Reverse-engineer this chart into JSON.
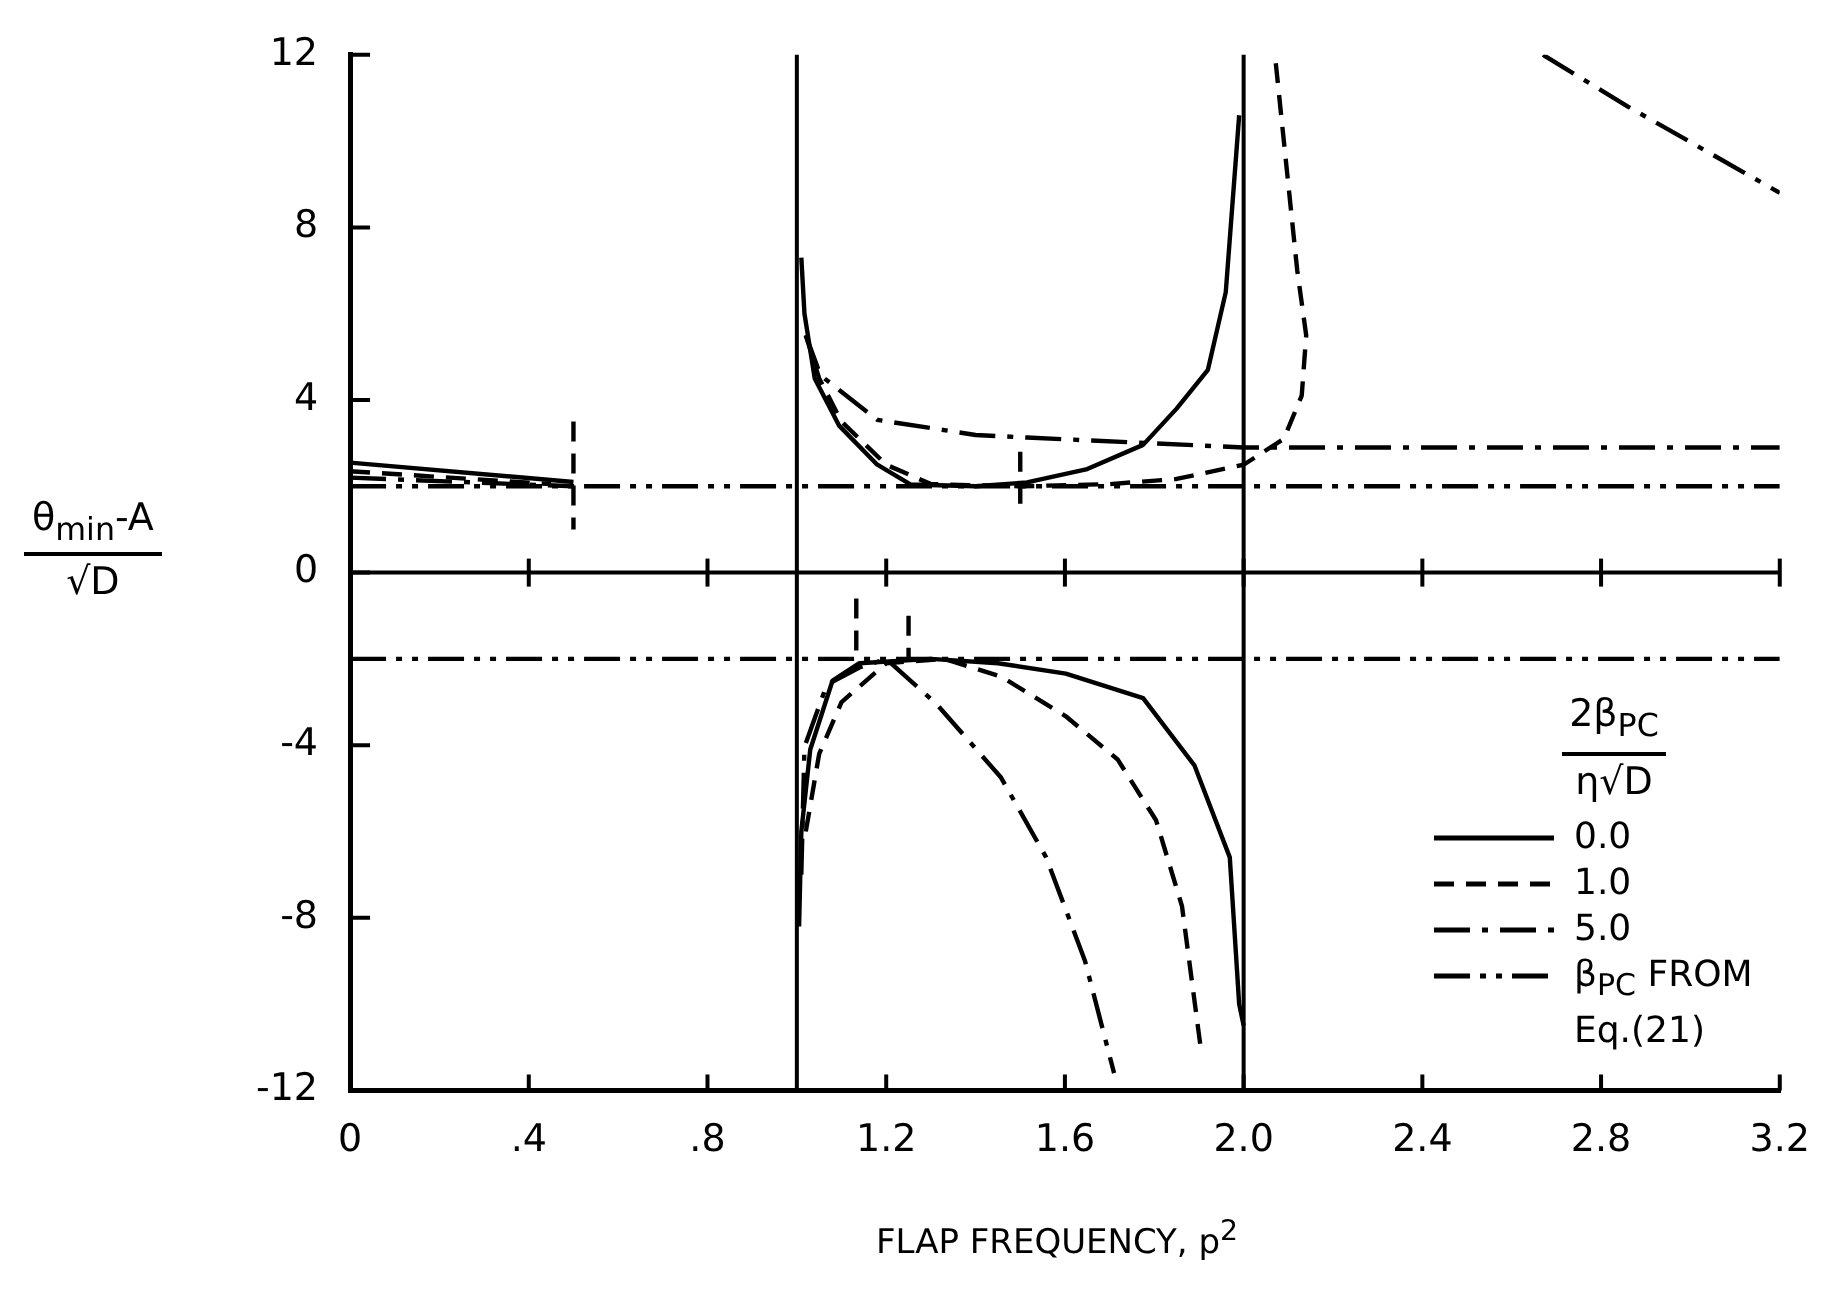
{
  "chart_data": {
    "type": "line",
    "xlabel": "FLAP FREQUENCY, p$^{2}$",
    "ylabel": "θ$_{min}$-A\n√D",
    "legend_title": "2β$_{PC}$\nη√D",
    "legend": "bottom right",
    "xlim": [
      0,
      3.2
    ],
    "ylim": [
      -12,
      12
    ],
    "xticks": [
      0,
      {
        "value": 0.4,
        "label": ".4"
      },
      {
        "value": 0.8,
        "label": ".8"
      },
      1.2,
      1.6,
      {
        "value": 2,
        "label": "2.0"
      },
      2.4,
      2.8,
      3.2
    ],
    "yticks": [
      -12,
      -8,
      -4,
      0,
      4,
      8,
      12
    ],
    "ref_lines": [
      {
        "axis": "x",
        "value": 1
      },
      {
        "axis": "x",
        "value": 2
      },
      {
        "axis": "y",
        "value": 0
      }
    ],
    "series": [
      {
        "name": "0.0",
        "color": "#000000",
        "line_style": "solid",
        "x": [
          0,
          0.5,
          null,
          1.01,
          1.017,
          1.04,
          1.095,
          1.18,
          1.255,
          1.4,
          1.515,
          1.65,
          1.775,
          1.85,
          1.92,
          1.96,
          1.99,
          null,
          1.005,
          1.01,
          1.03,
          1.08,
          1.14,
          1.3,
          1.45,
          1.602,
          1.775,
          1.89,
          1.969,
          1.99,
          2.0
        ],
        "values": [
          2.55,
          2.1,
          null,
          7.3,
          6.0,
          4.5,
          3.4,
          2.5,
          2.04,
          2.0,
          2.09,
          2.4,
          2.96,
          3.8,
          4.7,
          6.5,
          10.6,
          null,
          -8.2,
          -6,
          -4.1,
          -2.5,
          -2.1,
          -2.0,
          -2.1,
          -2.34,
          -2.91,
          -4.47,
          -6.6,
          -10.0,
          -10.5
        ]
      },
      {
        "name": "1.0",
        "color": "#000000",
        "line_style": "dashed",
        "x": [
          0,
          0.45,
          null,
          1.02,
          1.05,
          1.1,
          1.2,
          1.3,
          1.5,
          1.7,
          1.85,
          2.0,
          2.09,
          2.13,
          2.14,
          2.12,
          2.07,
          null,
          1.02,
          1.05,
          1.1,
          1.2,
          1.33,
          1.457,
          1.602,
          1.718,
          1.804,
          1.862,
          1.905
        ],
        "values": [
          2.35,
          2.05,
          null,
          5.5,
          4.5,
          3.5,
          2.5,
          2.05,
          2.0,
          2.05,
          2.17,
          2.5,
          3.1,
          4.1,
          5.5,
          7.0,
          12,
          null,
          -6,
          -4.2,
          -3.0,
          -2.1,
          -2.0,
          -2.41,
          -3.33,
          -4.33,
          -5.74,
          -7.73,
          -11.1
        ]
      },
      {
        "name": "5.0",
        "color": "#000000",
        "line_style": "dashdot",
        "x": [
          0,
          0.5,
          null,
          1.02,
          1.053,
          1.18,
          1.4,
          1.515,
          2.0,
          3.2,
          null,
          2.67,
          2.86,
          3.2,
          null,
          1.01,
          1.017,
          1.067,
          1.14,
          1.2,
          1.313,
          1.457,
          1.558,
          1.645,
          1.71
        ],
        "values": [
          2.2,
          2.0,
          null,
          5.5,
          4.57,
          3.54,
          3.19,
          3.13,
          2.9,
          2.9,
          null,
          12,
          10.8,
          8.8,
          null,
          -7,
          -4.04,
          -2.6,
          -2.2,
          -2.0,
          -3.05,
          -4.75,
          -6.6,
          -9.0,
          -11.6
        ]
      },
      {
        "name": "β$_{PC}$ FROM Eq.(21)",
        "color": "#000000",
        "line_style": "dashdotdot",
        "x": [
          0,
          3.2
        ],
        "values": [
          2,
          2
        ]
      },
      {
        "color": "#000000",
        "line_style": "dashdotdot",
        "x": [
          0,
          3.2
        ],
        "values": [
          -2,
          -2
        ]
      },
      {
        "color": "#000000",
        "line_style": "dashed",
        "x": [
          0.5,
          0.5,
          null,
          1.5,
          1.5,
          null,
          1.133,
          1.133,
          null,
          1.25,
          1.25
        ],
        "values": [
          3.5,
          1,
          null,
          2.8,
          1.4,
          null,
          -0.6,
          -2.0,
          null,
          -1.0,
          -2.0
        ]
      }
    ]
  }
}
